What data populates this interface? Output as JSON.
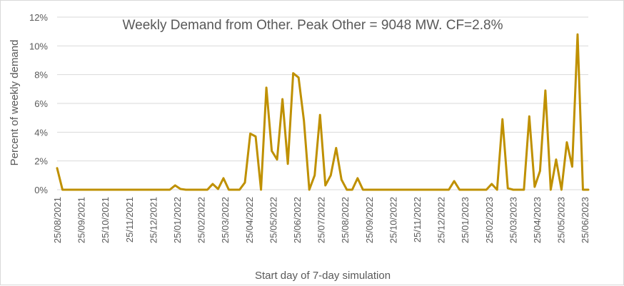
{
  "chart_data": {
    "type": "line",
    "title": "Weekly Demand from Other. Peak Other = 9048 MW. CF=2.8%",
    "xlabel": "Start day of 7-day simulation",
    "ylabel": "Percent of weekly demand",
    "ylim": [
      0,
      12
    ],
    "ytick_step": 2,
    "ytick_labels": [
      "0%",
      "2%",
      "4%",
      "6%",
      "8%",
      "10%",
      "12%"
    ],
    "x_ticks": [
      "25/08/2021",
      "25/09/2021",
      "25/10/2021",
      "25/11/2021",
      "25/12/2021",
      "25/01/2022",
      "25/02/2022",
      "25/03/2022",
      "25/04/2022",
      "25/05/2022",
      "25/06/2022",
      "25/07/2022",
      "25/08/2022",
      "25/09/2022",
      "25/10/2022",
      "25/11/2022",
      "25/12/2022",
      "25/01/2023",
      "25/02/2023",
      "25/03/2023",
      "25/04/2023",
      "25/05/2023",
      "25/06/2023"
    ],
    "grid": "horizontal",
    "legend": "none",
    "series": [
      {
        "color": "#BF9000",
        "values": [
          1.5,
          0,
          0,
          0,
          0,
          0,
          0,
          0,
          0,
          0,
          0,
          0,
          0,
          0,
          0,
          0,
          0,
          0,
          0,
          0,
          0,
          0,
          0.3,
          0.05,
          0,
          0,
          0,
          0,
          0,
          0.4,
          0.05,
          0.8,
          0,
          0,
          0,
          0.5,
          3.9,
          3.7,
          0,
          7.1,
          2.7,
          2.1,
          6.3,
          1.8,
          8.1,
          7.8,
          4.8,
          0,
          1.0,
          5.2,
          0.3,
          1.0,
          2.9,
          0.7,
          0,
          0,
          0.8,
          0,
          0,
          0,
          0,
          0,
          0,
          0,
          0,
          0,
          0,
          0,
          0,
          0,
          0,
          0,
          0,
          0,
          0.6,
          0,
          0,
          0,
          0,
          0,
          0,
          0.4,
          0,
          4.9,
          0.1,
          0,
          0,
          0,
          5.1,
          0.2,
          1.3,
          6.9,
          0,
          2.1,
          0,
          3.3,
          1.6,
          10.8,
          0,
          0
        ]
      }
    ]
  }
}
